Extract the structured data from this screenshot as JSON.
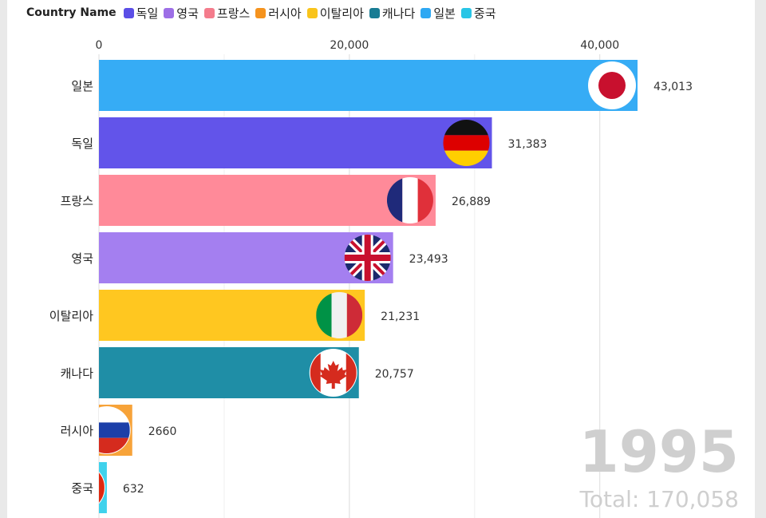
{
  "legend": {
    "title": "Country Name",
    "items": [
      {
        "label": "독일",
        "color": "#5b4ee6"
      },
      {
        "label": "영국",
        "color": "#9d6fe6"
      },
      {
        "label": "프랑스",
        "color": "#f47c8c"
      },
      {
        "label": "러시아",
        "color": "#f5931e"
      },
      {
        "label": "이탈리아",
        "color": "#f9c41b"
      },
      {
        "label": "캐나다",
        "color": "#187c94"
      },
      {
        "label": "일본",
        "color": "#2ea8f3"
      },
      {
        "label": "중국",
        "color": "#29c5e6"
      }
    ]
  },
  "year": "1995",
  "total": "Total: 170,058",
  "chart_data": {
    "type": "bar",
    "orientation": "horizontal",
    "categories": [
      "일본",
      "독일",
      "프랑스",
      "영국",
      "이탈리아",
      "캐나다",
      "러시아",
      "중국"
    ],
    "values": [
      43013,
      31383,
      26889,
      23493,
      21231,
      20757,
      2660,
      632
    ],
    "value_labels": [
      "43,013",
      "31,383",
      "26,889",
      "23,493",
      "21,231",
      "20,757",
      "2660",
      "632"
    ],
    "colors": [
      "#36acf5",
      "#6254ea",
      "#ff8a99",
      "#a47ff0",
      "#ffc720",
      "#1f8ea6",
      "#f7a339",
      "#3fd2ec"
    ],
    "flags": [
      "japan",
      "germany",
      "france",
      "uk",
      "italy",
      "canada",
      "russia",
      "china"
    ],
    "x_ticks": [
      0,
      20000,
      40000
    ],
    "x_tick_labels": [
      "0",
      "20,000",
      "40,000"
    ],
    "xlim": [
      0,
      43013
    ],
    "grid": true,
    "axis_position": "top"
  }
}
